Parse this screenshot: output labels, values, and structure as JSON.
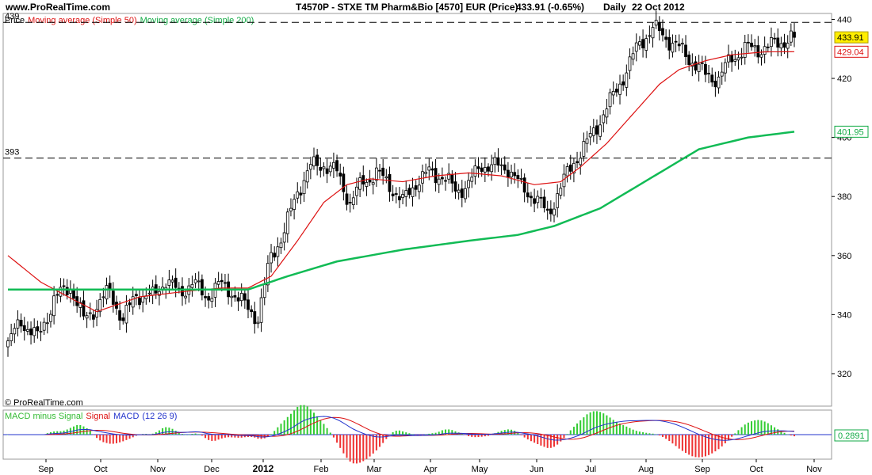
{
  "header": {
    "site": "www.ProRealTime.com",
    "title": "T4570P - STXE TM Pharm&Bio [4570] EUR (Price)",
    "price_change": "433.91 (-0.65%)",
    "period": "Daily",
    "date": "22 Oct 2012"
  },
  "watermark": "© ProRealTime.com",
  "price_panel": {
    "legend": [
      {
        "text": "Price",
        "color": "#000000"
      },
      {
        "text": "Moving average (Simple 50)",
        "color": "#dd1111"
      },
      {
        "text": "Moving average (Simple 200)",
        "color": "#11aa44"
      }
    ],
    "hlines": [
      {
        "value": 439,
        "label": "439"
      },
      {
        "value": 393,
        "label": "393"
      }
    ],
    "badges": [
      {
        "value": 433.91,
        "label": "433.91",
        "bg": "#ffee00",
        "border": "#aa9900",
        "text_color": "#000000"
      },
      {
        "value": 429.04,
        "label": "429.04",
        "bg": "#ffffff",
        "border": "#dd1111",
        "text_color": "#dd1111"
      },
      {
        "value": 401.95,
        "label": "401.95",
        "bg": "#ffffff",
        "border": "#11aa44",
        "text_color": "#11aa44"
      }
    ]
  },
  "macd_panel": {
    "legend": [
      {
        "text": "MACD minus Signal",
        "color": "#33bb33"
      },
      {
        "text": "Signal",
        "color": "#dd1111"
      },
      {
        "text": "MACD",
        "color": "#2233cc"
      },
      {
        "text": "(12 26 9)",
        "color": "#2233cc"
      }
    ],
    "zero_line": 0,
    "badge": {
      "label": "0.2891",
      "bg": "#ffffff",
      "border": "#11aa44",
      "text_color": "#11aa44"
    }
  },
  "colors": {
    "candle": "#000000",
    "ma50": "#dd1111",
    "ma200": "#11bb55",
    "macd_hist_pos": "#33cc33",
    "macd_hist_neg": "#ee3333",
    "macd_fill": "#ffaaaa",
    "frame": "#999999"
  },
  "chart_data": [
    {
      "type": "candlestick",
      "title": "T4570P - STXE TM Pharm&Bio [4570] EUR (Price)",
      "x_ticks": [
        "Sep",
        "Oct",
        "Nov",
        "Dec",
        "2012",
        "Feb",
        "Mar",
        "Apr",
        "May",
        "Jun",
        "Jul",
        "Aug",
        "Sep",
        "Oct",
        "Nov"
      ],
      "y_ticks": [
        320,
        340,
        360,
        380,
        400,
        420,
        440
      ],
      "ylim": [
        309,
        442
      ],
      "grid": false,
      "series": [
        {
          "name": "Price",
          "x_span": [
            "2011-08-22",
            "2012-10-22"
          ],
          "points": [
            [
              0,
              330
            ],
            [
              4,
              338
            ],
            [
              9,
              332
            ],
            [
              14,
              345
            ],
            [
              19,
              350
            ],
            [
              23,
              338
            ],
            [
              27,
              343
            ],
            [
              31,
              348
            ],
            [
              35,
              338
            ],
            [
              39,
              347
            ],
            [
              44,
              346
            ],
            [
              48,
              352
            ],
            [
              52,
              347
            ],
            [
              56,
              351
            ],
            [
              60,
              346
            ],
            [
              64,
              350
            ],
            [
              68,
              348
            ],
            [
              72,
              343
            ],
            [
              76,
              339
            ],
            [
              80,
              360
            ],
            [
              84,
              368
            ],
            [
              88,
              382
            ],
            [
              92,
              390
            ],
            [
              96,
              391
            ],
            [
              100,
              388
            ],
            [
              104,
              378
            ],
            [
              108,
              385
            ],
            [
              112,
              388
            ],
            [
              116,
              384
            ],
            [
              120,
              378
            ],
            [
              124,
              385
            ],
            [
              128,
              388
            ],
            [
              132,
              387
            ],
            [
              136,
              382
            ],
            [
              140,
              384
            ],
            [
              144,
              391
            ],
            [
              148,
              390
            ],
            [
              152,
              390
            ],
            [
              156,
              383
            ],
            [
              160,
              380
            ],
            [
              164,
              374
            ],
            [
              168,
              383
            ],
            [
              172,
              392
            ],
            [
              176,
              398
            ],
            [
              180,
              406
            ],
            [
              184,
              414
            ],
            [
              188,
              423
            ],
            [
              192,
              432
            ],
            [
              196,
              437
            ],
            [
              200,
              434
            ],
            [
              204,
              430
            ],
            [
              208,
              426
            ],
            [
              212,
              421
            ],
            [
              216,
              420
            ],
            [
              220,
              427
            ],
            [
              224,
              430
            ],
            [
              228,
              430
            ],
            [
              232,
              431
            ],
            [
              236,
              433
            ],
            [
              239,
              433.91
            ]
          ]
        },
        {
          "name": "Moving average (Simple 50)",
          "points": [
            [
              0,
              360
            ],
            [
              10,
              351
            ],
            [
              20,
              345
            ],
            [
              27,
              341
            ],
            [
              40,
              346
            ],
            [
              55,
              348
            ],
            [
              65,
              349
            ],
            [
              73,
              349
            ],
            [
              80,
              353
            ],
            [
              88,
              365
            ],
            [
              96,
              378
            ],
            [
              103,
              384
            ],
            [
              110,
              386
            ],
            [
              120,
              385
            ],
            [
              130,
              387
            ],
            [
              140,
              388
            ],
            [
              150,
              387
            ],
            [
              160,
              384
            ],
            [
              168,
              385
            ],
            [
              174,
              390
            ],
            [
              182,
              398
            ],
            [
              190,
              408
            ],
            [
              198,
              418
            ],
            [
              204,
              423
            ],
            [
              212,
              426
            ],
            [
              220,
              428
            ],
            [
              230,
              429
            ],
            [
              239,
              429.04
            ]
          ]
        },
        {
          "name": "Moving average (Simple 200)",
          "points": [
            [
              0,
              348.5
            ],
            [
              50,
              348.5
            ],
            [
              73,
              348.5
            ],
            [
              85,
              353
            ],
            [
              100,
              358
            ],
            [
              120,
              362
            ],
            [
              140,
              365
            ],
            [
              155,
              367
            ],
            [
              166,
              370
            ],
            [
              180,
              376
            ],
            [
              195,
              386
            ],
            [
              210,
              396
            ],
            [
              225,
              400
            ],
            [
              239,
              401.95
            ]
          ]
        }
      ]
    },
    {
      "type": "bar",
      "title": "MACD (12 26 9)",
      "series": [
        {
          "name": "MACD minus Signal",
          "x_span": [
            "2011-08-22",
            "2012-10-22"
          ]
        },
        {
          "name": "Signal"
        },
        {
          "name": "MACD"
        }
      ],
      "last_value": 0.2891
    }
  ]
}
